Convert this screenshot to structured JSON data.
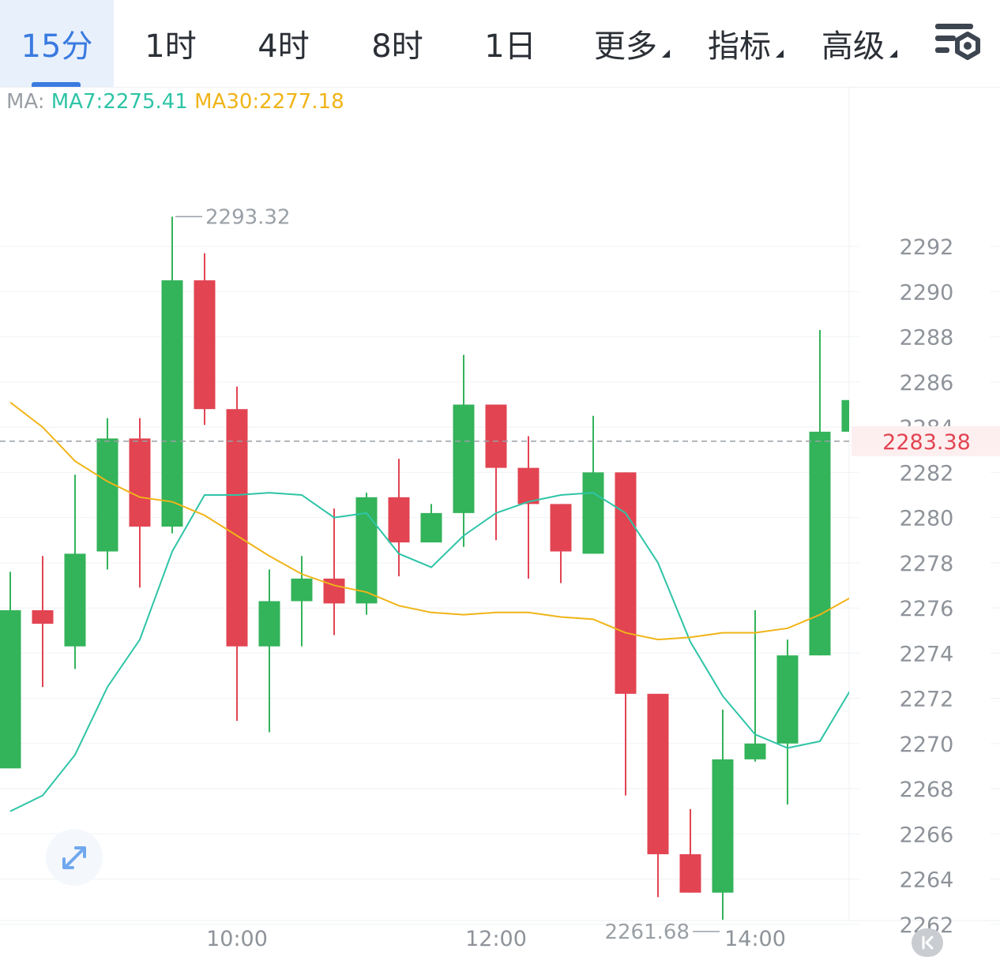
{
  "toolbar": {
    "tabs": [
      {
        "label": "15分",
        "active": true
      },
      {
        "label": "1时"
      },
      {
        "label": "4时"
      },
      {
        "label": "8时"
      },
      {
        "label": "1日"
      },
      {
        "label": "更多",
        "dropdown": true
      },
      {
        "label": "指标",
        "dropdown": true
      },
      {
        "label": "高级",
        "dropdown": true
      }
    ],
    "settings_icon": "chart-settings-icon"
  },
  "ma_legend": {
    "label": "MA:",
    "ma7": "MA7:2275.41",
    "ma30": "MA30:2277.18"
  },
  "colors": {
    "up": "#33b35a",
    "down": "#e24452",
    "ma7": "#2ec4a6",
    "ma30": "#f0b418",
    "accent": "#3a7be0"
  },
  "chart_data": {
    "type": "candlestick",
    "interval": "15分",
    "y_ticks": [
      2292,
      2290,
      2288,
      2286,
      2284,
      2282,
      2280,
      2278,
      2276,
      2274,
      2272,
      2270,
      2268,
      2266,
      2264,
      2262
    ],
    "ylim": [
      2260,
      2294.8
    ],
    "x_ticks": [
      {
        "label": "10:00",
        "index": 7
      },
      {
        "label": "12:00",
        "index": 15
      },
      {
        "label": "14:00",
        "index": 23
      }
    ],
    "current_price": "2283.38",
    "high_annotation": {
      "label": "2293.32",
      "index": 5
    },
    "low_annotation": {
      "label": "2261.68",
      "index": 22
    },
    "candles": [
      {
        "open": 2268.9,
        "high": 2277.6,
        "low": 2268.9,
        "close": 2275.9
      },
      {
        "open": 2275.9,
        "high": 2278.3,
        "low": 2272.5,
        "close": 2275.3
      },
      {
        "open": 2274.3,
        "high": 2281.9,
        "low": 2273.3,
        "close": 2278.4
      },
      {
        "open": 2278.5,
        "high": 2284.4,
        "low": 2277.7,
        "close": 2283.5
      },
      {
        "open": 2283.5,
        "high": 2284.4,
        "low": 2276.9,
        "close": 2279.6
      },
      {
        "open": 2279.6,
        "high": 2293.32,
        "low": 2279.3,
        "close": 2290.5
      },
      {
        "open": 2290.5,
        "high": 2291.7,
        "low": 2284.1,
        "close": 2284.8
      },
      {
        "open": 2284.8,
        "high": 2285.8,
        "low": 2271.0,
        "close": 2274.3
      },
      {
        "open": 2274.3,
        "high": 2277.7,
        "low": 2270.5,
        "close": 2276.3
      },
      {
        "open": 2276.3,
        "high": 2278.3,
        "low": 2274.3,
        "close": 2277.3
      },
      {
        "open": 2277.3,
        "high": 2280.4,
        "low": 2274.8,
        "close": 2276.2
      },
      {
        "open": 2276.2,
        "high": 2281.1,
        "low": 2275.7,
        "close": 2280.9
      },
      {
        "open": 2280.9,
        "high": 2282.6,
        "low": 2277.4,
        "close": 2278.9
      },
      {
        "open": 2278.9,
        "high": 2280.6,
        "low": 2278.9,
        "close": 2280.2
      },
      {
        "open": 2280.2,
        "high": 2287.2,
        "low": 2278.7,
        "close": 2285.0
      },
      {
        "open": 2285.0,
        "high": 2285.0,
        "low": 2279.0,
        "close": 2282.2
      },
      {
        "open": 2282.2,
        "high": 2283.6,
        "low": 2277.3,
        "close": 2280.6
      },
      {
        "open": 2280.6,
        "high": 2280.6,
        "low": 2277.1,
        "close": 2278.5
      },
      {
        "open": 2278.4,
        "high": 2284.5,
        "low": 2278.4,
        "close": 2282.0
      },
      {
        "open": 2282.0,
        "high": 2282.0,
        "low": 2267.7,
        "close": 2272.2
      },
      {
        "open": 2272.2,
        "high": 2272.2,
        "low": 2263.2,
        "close": 2265.1
      },
      {
        "open": 2265.1,
        "high": 2267.1,
        "low": 2263.4,
        "close": 2263.4
      },
      {
        "open": 2263.4,
        "high": 2271.5,
        "low": 2261.68,
        "close": 2269.3
      },
      {
        "open": 2269.3,
        "high": 2275.9,
        "low": 2269.2,
        "close": 2270.0
      },
      {
        "open": 2270.0,
        "high": 2274.6,
        "low": 2267.3,
        "close": 2273.9
      },
      {
        "open": 2273.9,
        "high": 2288.3,
        "low": 2273.9,
        "close": 2283.8
      },
      {
        "open": 2283.8,
        "high": 2285.3,
        "low": 2283.8,
        "close": 2285.2
      }
    ],
    "series": [
      {
        "name": "MA7",
        "values": [
          2267.0,
          2267.7,
          2269.5,
          2272.5,
          2274.6,
          2278.5,
          2281.0,
          2281.0,
          2281.1,
          2281.0,
          2280.0,
          2280.2,
          2278.4,
          2277.8,
          2279.2,
          2280.2,
          2280.7,
          2281.0,
          2281.1,
          2280.2,
          2278.0,
          2274.5,
          2272.1,
          2270.4,
          2269.8,
          2270.1,
          2272.5
        ]
      },
      {
        "name": "MA30",
        "values": [
          2285.1,
          2284.0,
          2282.5,
          2281.6,
          2280.9,
          2280.7,
          2280.1,
          2279.2,
          2278.3,
          2277.5,
          2277.0,
          2276.7,
          2276.1,
          2275.8,
          2275.7,
          2275.8,
          2275.8,
          2275.6,
          2275.5,
          2274.9,
          2274.6,
          2274.7,
          2274.9,
          2274.9,
          2275.1,
          2275.7,
          2276.5
        ]
      }
    ],
    "grid": true
  },
  "controls": {
    "expand_icon": "expand-arrows-icon",
    "back_icon": "scroll-to-latest-icon"
  }
}
